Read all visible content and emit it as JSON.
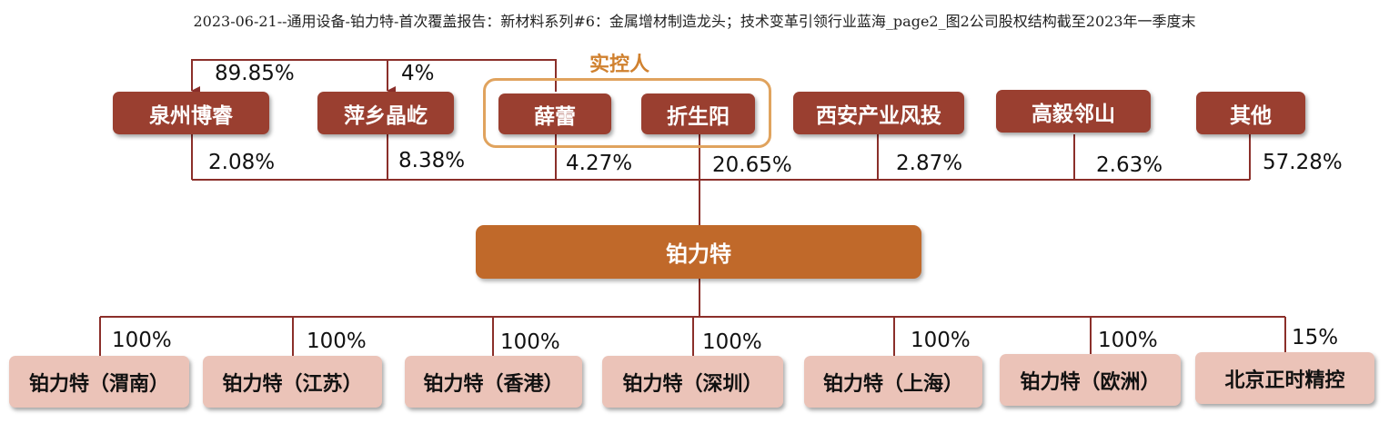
{
  "title": "2023-06-21--通用设备-铂力特-首次覆盖报告：新材料系列#6：金属增材制造龙头；技术变革引领行业蓝海_page2_图2公司股权结构截至2023年一季度末",
  "controller_label": "实控人",
  "colors": {
    "shareholder_box": "#9a3f30",
    "center_box": "#c0692a",
    "subsidiary_box": "#ebc3b8",
    "controller_frame": "#e0a35e",
    "line": "#8b2f2a"
  },
  "shareholders": [
    {
      "name": "泉州博睿",
      "stake": "2.08%"
    },
    {
      "name": "萍乡晶屹",
      "stake": "8.38%"
    },
    {
      "name": "薛蕾",
      "stake": "4.27%"
    },
    {
      "name": "折生阳",
      "stake": "20.65%"
    },
    {
      "name": "西安产业风投",
      "stake": "2.87%"
    },
    {
      "name": "高毅邻山",
      "stake": "2.63%"
    },
    {
      "name": "其他",
      "stake": "57.28%"
    }
  ],
  "controller_holdings": [
    {
      "target": "泉州博睿",
      "stake": "89.85%"
    },
    {
      "target": "萍乡晶屹",
      "stake": "4%"
    }
  ],
  "company": "铂力特",
  "subsidiaries": [
    {
      "name": "铂力特（渭南）",
      "stake": "100%"
    },
    {
      "name": "铂力特（江苏）",
      "stake": "100%"
    },
    {
      "name": "铂力特（香港）",
      "stake": "100%"
    },
    {
      "name": "铂力特（深圳）",
      "stake": "100%"
    },
    {
      "name": "铂力特（上海）",
      "stake": "100%"
    },
    {
      "name": "铂力特（欧洲）",
      "stake": "100%"
    },
    {
      "name": "北京正时精控",
      "stake": "15%"
    }
  ]
}
